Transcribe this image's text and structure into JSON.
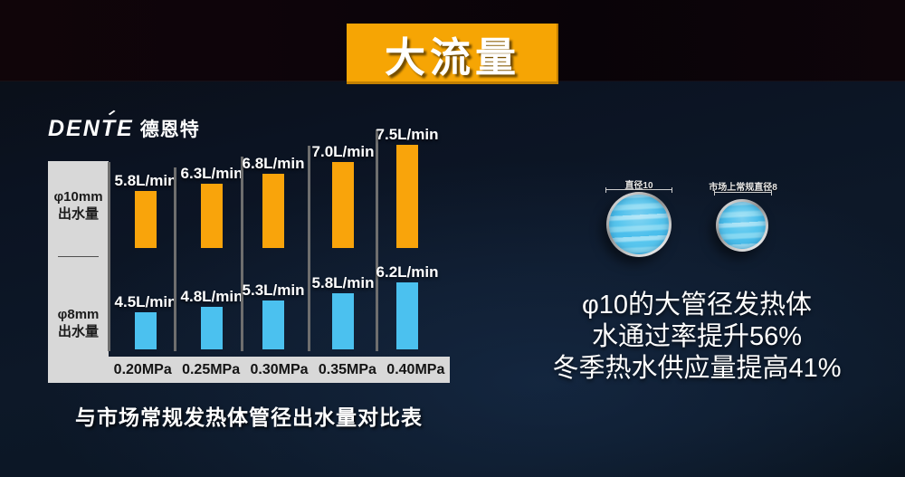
{
  "banner": {
    "title": "大流量"
  },
  "logo": {
    "latin": "DENTE",
    "cjk": "德恩特"
  },
  "chart_data": {
    "type": "bar",
    "title": "与市场常规发热体管径出水量对比表",
    "categories": [
      "0.20MPa",
      "0.25MPa",
      "0.30MPa",
      "0.35MPa",
      "0.40MPa"
    ],
    "series": [
      {
        "name": "φ10mm 出水量",
        "unit": "L/min",
        "color": "#F9A40B",
        "values": [
          5.8,
          6.3,
          6.8,
          7.0,
          7.5
        ],
        "labels": [
          "5.8L/min",
          "6.3L/min",
          "6.8L/min",
          "7.0L/min",
          "7.5L/min"
        ]
      },
      {
        "name": "φ8mm 出水量",
        "unit": "L/min",
        "color": "#4BC1EF",
        "values": [
          4.5,
          4.8,
          5.3,
          5.8,
          6.2
        ],
        "labels": [
          "4.5L/min",
          "4.8L/min",
          "5.3L/min",
          "5.8L/min",
          "6.2L/min"
        ]
      }
    ],
    "legend_position": "left-axis-rows",
    "grid": false
  },
  "axis_rows": [
    {
      "line1": "φ10mm",
      "line2": "出水量"
    },
    {
      "line1": "φ8mm",
      "line2": "出水量"
    }
  ],
  "pipes": {
    "large_label": "直径10",
    "small_label": "市场上常规直径8"
  },
  "highlights": [
    "φ10的大管径发热体",
    "水通过率提升56%",
    "冬季热水供应量提高41%"
  ],
  "colors": {
    "banner": "#F6A504",
    "bar_orange": "#F9A40B",
    "bar_blue": "#4BC1EF",
    "panel_gray": "#D8D8D8"
  }
}
